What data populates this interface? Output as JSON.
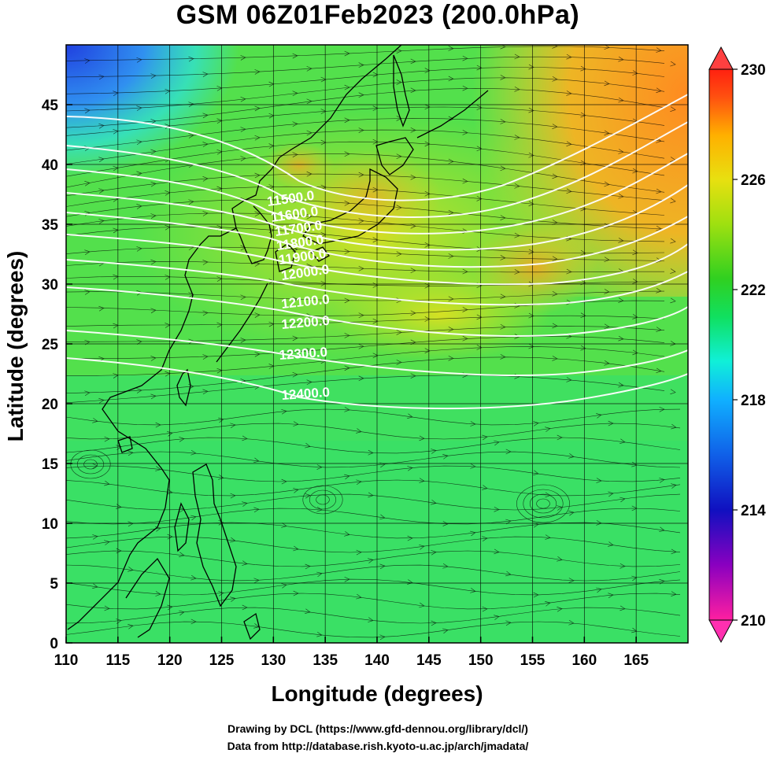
{
  "title": "GSM 06Z01Feb2023 (200.0hPa)",
  "xlabel": "Longitude (degrees)",
  "ylabel": "Latitude  (degrees)",
  "credits": {
    "line1": "Drawing by DCL (https://www.gfd-dennou.org/library/dcl/)",
    "line2": "Data from http://database.rish.kyoto-u.ac.jp/arch/jmadata/"
  },
  "map": {
    "lon_range": [
      110,
      170
    ],
    "lat_range": [
      0,
      50
    ],
    "x_ticks": [
      "110",
      "115",
      "120",
      "125",
      "130",
      "135",
      "140",
      "145",
      "150",
      "155",
      "160",
      "165"
    ],
    "y_ticks": [
      "0",
      "5",
      "10",
      "15",
      "20",
      "25",
      "30",
      "35",
      "40",
      "45"
    ],
    "contour_labels": [
      "11500.0",
      "11600.0",
      "11700.0",
      "11800.0",
      "11900.0",
      "12000.0",
      "12100.0",
      "12200.0",
      "12300.0",
      "12400.0"
    ],
    "fill_variable_range": [
      210,
      230
    ]
  },
  "colorbar": {
    "ticks": [
      "230",
      "226",
      "222",
      "218",
      "214",
      "210"
    ],
    "colors": [
      "#ff1fa0",
      "#8a00c0",
      "#1010c0",
      "#1050e0",
      "#10a0ff",
      "#10f0e0",
      "#10e060",
      "#30d020",
      "#90e010",
      "#e0e010",
      "#ffb000",
      "#ff6010",
      "#ff2010"
    ]
  },
  "chart_data": {
    "type": "heatmap",
    "title": "GSM 06Z01Feb2023 (200.0hPa)",
    "xlabel": "Longitude (degrees)",
    "ylabel": "Latitude  (degrees)",
    "xlim": [
      110,
      170
    ],
    "ylim": [
      0,
      50
    ],
    "color_scale": {
      "min": 210,
      "max": 230,
      "ticks": [
        210,
        214,
        218,
        222,
        226,
        230
      ]
    },
    "contour_levels": [
      11500,
      11600,
      11700,
      11800,
      11900,
      12000,
      12100,
      12200,
      12300,
      12400
    ],
    "overlays": [
      "streamlines",
      "wind arrows",
      "coastlines",
      "geopotential height contours"
    ]
  }
}
